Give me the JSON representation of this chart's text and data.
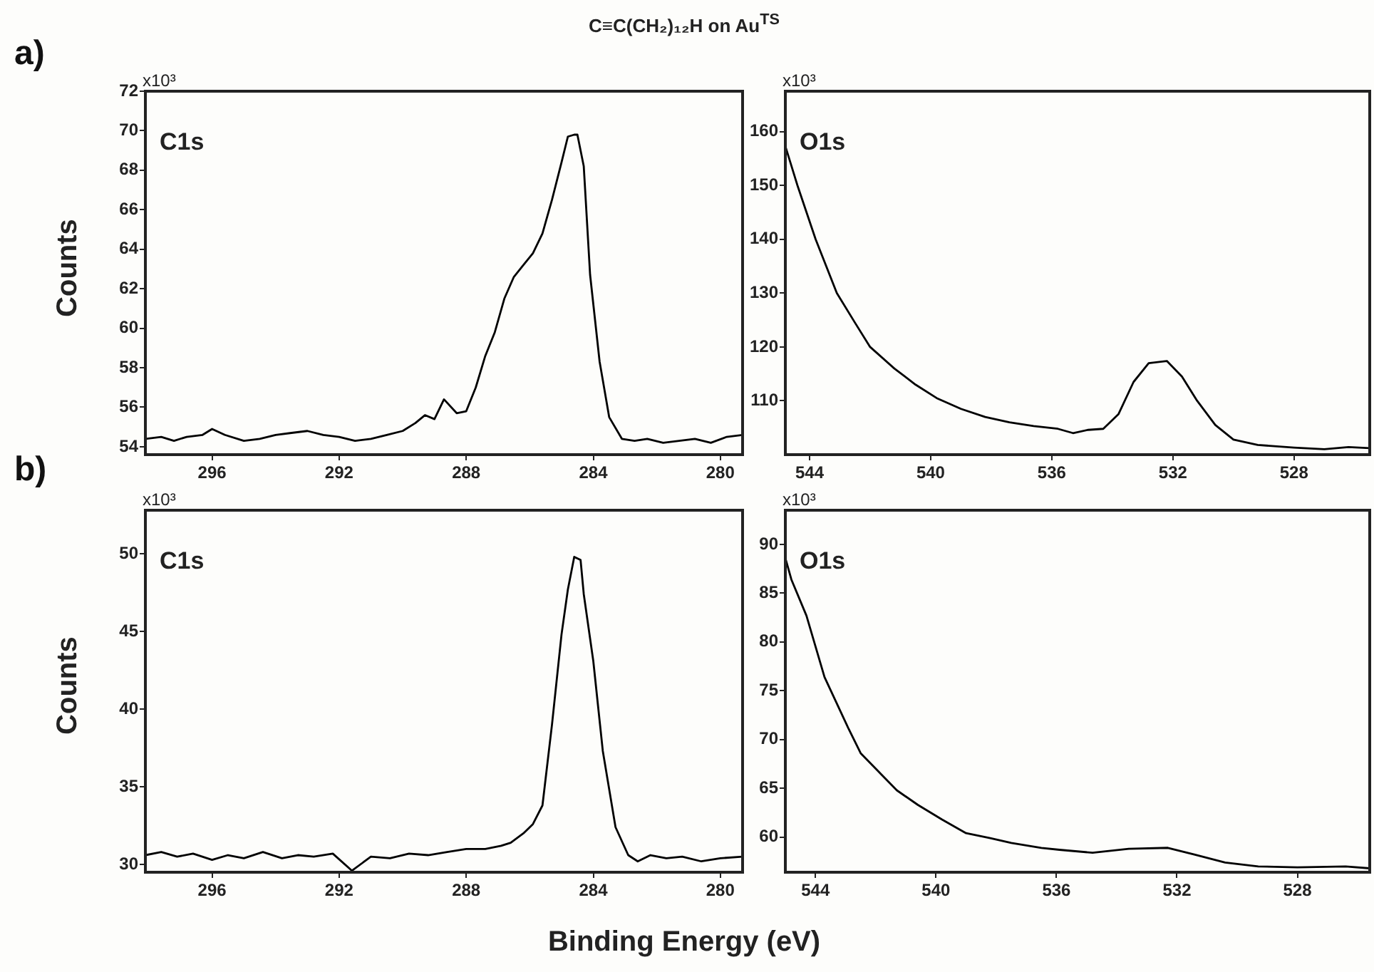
{
  "chart_data": [
    {
      "type": "line",
      "title": "C≡C(CH₂)₁₂H on Au$^{TS}$",
      "ylabel": "Counts",
      "annotations": [
        "x10³",
        "C1s",
        "a)"
      ],
      "xlim": [
        298.1,
        279.3
      ],
      "xticks": [
        296,
        292,
        288,
        284,
        280
      ],
      "ylim": [
        53.6,
        72
      ],
      "yticks": [
        54,
        56,
        58,
        60,
        62,
        64,
        66,
        68,
        70,
        72
      ],
      "grid": false,
      "legend": false,
      "x": [
        298.1,
        297.6,
        297.2,
        296.8,
        296.3,
        296.0,
        295.6,
        295.0,
        294.5,
        294.0,
        293.5,
        293.0,
        292.5,
        292.0,
        291.5,
        291.0,
        290.5,
        290.0,
        289.6,
        289.3,
        289.0,
        288.7,
        288.3,
        288.0,
        287.7,
        287.4,
        287.1,
        286.8,
        286.5,
        286.2,
        285.9,
        285.6,
        285.3,
        285.0,
        284.8,
        284.6,
        284.5,
        284.3,
        284.1,
        283.8,
        283.5,
        283.1,
        282.7,
        282.3,
        281.8,
        281.3,
        280.8,
        280.3,
        279.8,
        279.3
      ],
      "series": [
        {
          "color": "#000000",
          "values": [
            54.4,
            54.5,
            54.3,
            54.5,
            54.6,
            54.9,
            54.6,
            54.3,
            54.4,
            54.6,
            54.7,
            54.8,
            54.6,
            54.5,
            54.3,
            54.4,
            54.6,
            54.8,
            55.2,
            55.6,
            55.4,
            56.4,
            55.7,
            55.8,
            57.0,
            58.6,
            59.8,
            61.5,
            62.6,
            63.2,
            63.8,
            64.8,
            66.5,
            68.4,
            69.7,
            69.8,
            69.8,
            68.2,
            62.7,
            58.3,
            55.5,
            54.4,
            54.3,
            54.4,
            54.2,
            54.3,
            54.4,
            54.2,
            54.5,
            54.6
          ]
        }
      ]
    },
    {
      "type": "line",
      "annotations": [
        "x10³",
        "O1s"
      ],
      "xlim": [
        544.8,
        525.5
      ],
      "xticks": [
        544,
        540,
        536,
        532,
        528
      ],
      "ylim": [
        100,
        167.5
      ],
      "yticks": [
        110,
        120,
        130,
        140,
        150,
        160
      ],
      "grid": false,
      "legend": false,
      "x": [
        544.8,
        544.4,
        543.8,
        543.1,
        542.5,
        542.0,
        541.2,
        540.5,
        539.8,
        539.0,
        538.2,
        537.4,
        536.6,
        535.8,
        535.3,
        534.8,
        534.3,
        533.8,
        533.3,
        532.8,
        532.2,
        531.7,
        531.2,
        530.6,
        530.0,
        529.2,
        528.0,
        527.0,
        526.2,
        525.5
      ],
      "series": [
        {
          "color": "#000000",
          "values": [
            157.3,
            150,
            140,
            130,
            124.5,
            120,
            116,
            113,
            110.5,
            108.5,
            107.0,
            106.0,
            105.3,
            104.8,
            104.0,
            104.6,
            104.8,
            107.5,
            113.5,
            117.0,
            117.4,
            114.5,
            110.0,
            105.5,
            102.8,
            101.8,
            101.3,
            101.0,
            101.4,
            101.2
          ]
        }
      ]
    },
    {
      "type": "line",
      "ylabel": "Counts",
      "xlabel": "Binding Energy (eV)",
      "annotations": [
        "x10³",
        "C1s",
        "b)"
      ],
      "xlim": [
        298.1,
        279.3
      ],
      "xticks": [
        296,
        292,
        288,
        284,
        280
      ],
      "ylim": [
        29.5,
        52.8
      ],
      "yticks": [
        30,
        35,
        40,
        45,
        50
      ],
      "grid": false,
      "legend": false,
      "x": [
        298.1,
        297.6,
        297.1,
        296.6,
        296.0,
        295.5,
        295.0,
        294.4,
        293.8,
        293.3,
        292.8,
        292.2,
        291.6,
        291.0,
        290.4,
        289.8,
        289.2,
        288.6,
        288.0,
        287.4,
        286.9,
        286.6,
        286.2,
        285.9,
        285.6,
        285.3,
        285.0,
        284.8,
        284.6,
        284.4,
        284.3,
        284.0,
        283.7,
        283.3,
        282.9,
        282.6,
        282.2,
        281.7,
        281.2,
        280.6,
        280.0,
        279.3
      ],
      "series": [
        {
          "color": "#000000",
          "values": [
            30.6,
            30.8,
            30.5,
            30.7,
            30.3,
            30.6,
            30.4,
            30.8,
            30.4,
            30.6,
            30.5,
            30.7,
            29.6,
            30.5,
            30.4,
            30.7,
            30.6,
            30.8,
            31.0,
            31.0,
            31.2,
            31.4,
            32.0,
            32.6,
            33.8,
            39.0,
            44.8,
            47.7,
            49.8,
            49.6,
            47.4,
            43.1,
            37.3,
            32.4,
            30.6,
            30.2,
            30.6,
            30.4,
            30.5,
            30.2,
            30.4,
            30.5
          ]
        }
      ]
    },
    {
      "type": "line",
      "annotations": [
        "x10³",
        "O1s"
      ],
      "xlim": [
        545.0,
        525.6
      ],
      "xticks": [
        544,
        540,
        536,
        532,
        528
      ],
      "ylim": [
        56.4,
        93.5
      ],
      "yticks": [
        60,
        65,
        70,
        75,
        80,
        85,
        90
      ],
      "grid": false,
      "legend": false,
      "x": [
        545.0,
        544.8,
        544.3,
        543.7,
        542.9,
        542.5,
        541.9,
        541.3,
        540.6,
        539.8,
        539.0,
        538.2,
        537.5,
        536.5,
        535.9,
        534.8,
        533.6,
        532.3,
        531.4,
        530.4,
        529.3,
        528.0,
        526.4,
        525.6
      ],
      "series": [
        {
          "color": "#000000",
          "values": [
            88.6,
            86.4,
            82.7,
            76.4,
            71.1,
            68.6,
            66.7,
            64.8,
            63.3,
            61.8,
            60.4,
            59.9,
            59.4,
            58.9,
            58.7,
            58.4,
            58.8,
            58.9,
            58.2,
            57.4,
            57.0,
            56.9,
            57.0,
            56.8
          ]
        }
      ]
    }
  ]
}
